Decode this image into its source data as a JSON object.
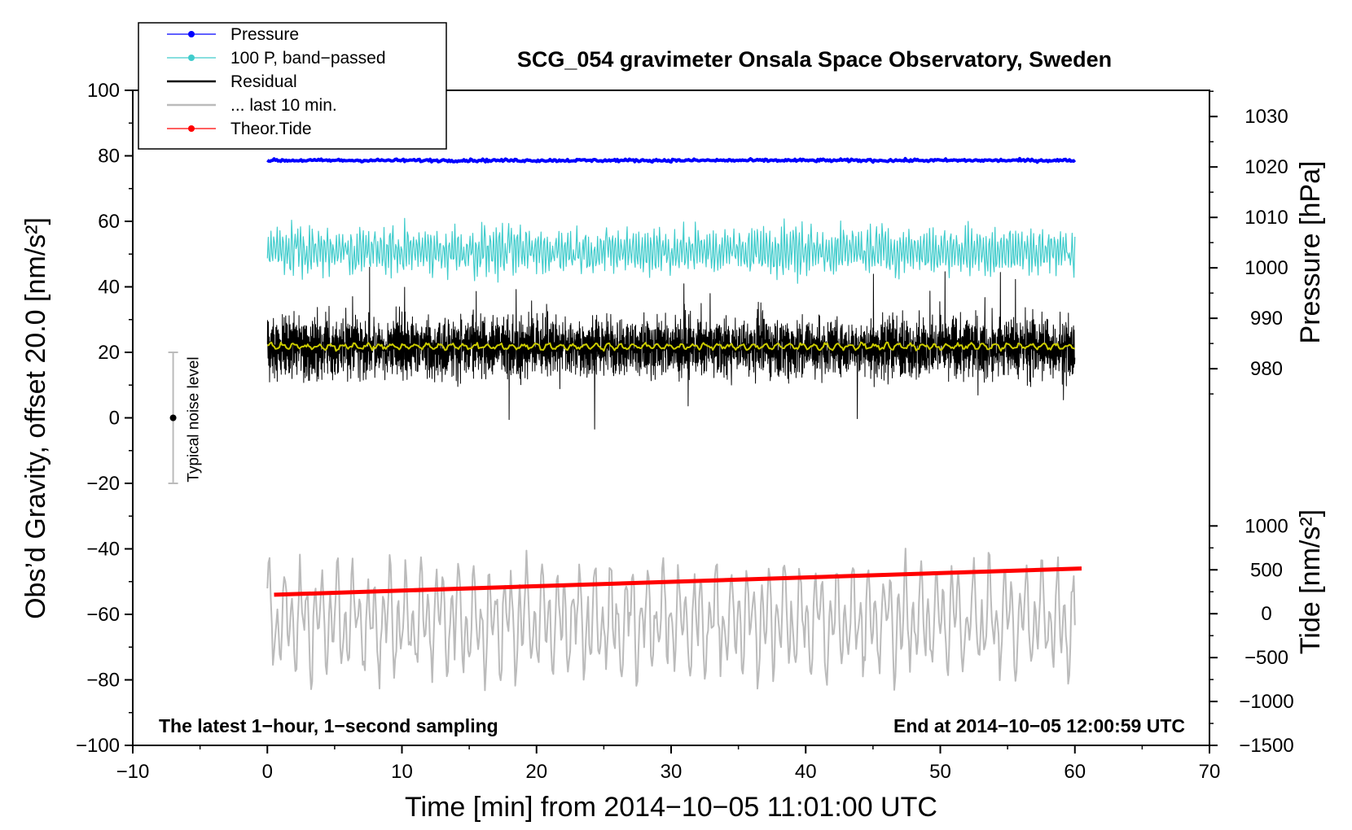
{
  "chart_data": {
    "type": "line",
    "title": "SCG_054 gravimeter Onsala Space Observatory, Sweden",
    "xlabel": "Time [min] from 2014−10−05 11:01:00 UTC",
    "ylabel_left": "Obs’d Gravity, offset 20.0 [nm/s²]",
    "ylabel_right_top": "Pressure [hPa]",
    "ylabel_right_bottom": "Tide [nm/s²]",
    "xlim": [
      -10,
      70
    ],
    "ylim": [
      -100,
      100
    ],
    "x_ticks": [
      -10,
      0,
      10,
      20,
      30,
      40,
      50,
      60,
      70
    ],
    "x_tick_labels": [
      "−10",
      "0",
      "10",
      "20",
      "30",
      "40",
      "50",
      "60",
      "70"
    ],
    "y_ticks": [
      -100,
      -80,
      -60,
      -40,
      -20,
      0,
      20,
      40,
      60,
      80,
      100
    ],
    "y_tick_labels": [
      "−100",
      "−80",
      "−60",
      "−40",
      "−20",
      "0",
      "20",
      "40",
      "60",
      "80",
      "100"
    ],
    "pressure_axis": {
      "ticks": [
        980,
        990,
        1000,
        1010,
        1020,
        1030
      ],
      "tick_labels": [
        "980",
        "990",
        "1000",
        "1010",
        "1020",
        "1030"
      ],
      "mapping": {
        "value_a": 980,
        "left_y_a": 15,
        "value_b": 1030,
        "left_y_b": 92
      }
    },
    "tide_axis": {
      "ticks": [
        -1500,
        -1000,
        -500,
        0,
        500,
        1000
      ],
      "tick_labels": [
        "−1500",
        "−1000",
        "−500",
        "0",
        "500",
        "1000"
      ],
      "mapping": {
        "value_a": -1500,
        "left_y_a": -100,
        "value_b": 1000,
        "left_y_b": -33
      }
    },
    "series": [
      {
        "name": "Pressure",
        "color": "#0000ff",
        "marker": true,
        "x_range": [
          0,
          60
        ],
        "level": 78.6,
        "amplitude": 0.4,
        "hpa": 1021
      },
      {
        "name": "100 P, band−passed",
        "color": "#40cccc",
        "marker": true,
        "x_range": [
          0,
          60
        ],
        "level": 51,
        "amplitude": 9
      },
      {
        "name": "Residual",
        "color": "#000000",
        "marker": false,
        "x_range": [
          0,
          60
        ],
        "level": 21.5,
        "amplitude": 15
      },
      {
        "name": "... last 10 min.",
        "color": "#bbbbbb",
        "marker": false,
        "x_range": [
          0,
          60
        ],
        "level": -62,
        "amplitude": 14
      },
      {
        "name": "Theor.Tide",
        "color": "#ff0000",
        "marker": true,
        "x_range": [
          0.5,
          60.5
        ],
        "start": -54,
        "end": -46
      }
    ],
    "smoothed_residual": {
      "color": "#cccc00",
      "level": 21.8,
      "amplitude": 1.2
    },
    "noise_bar": {
      "label": "Typical noise level",
      "x": -7,
      "center": 0,
      "low": -20,
      "high": 20
    },
    "annotations": {
      "left": "The latest 1−hour, 1−second sampling",
      "right": "End at 2014−10−05 12:00:59 UTC"
    },
    "legend_position": "top-left"
  }
}
